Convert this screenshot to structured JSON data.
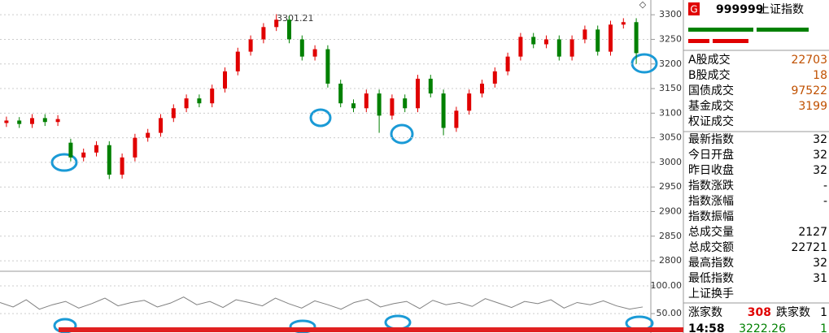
{
  "chart_data": [
    {
      "type": "candlestick",
      "annotation": "3301.21",
      "up_color": "#e00000",
      "down_color": "#008000",
      "open": [
        3080,
        3085,
        3078,
        3090,
        3082,
        3040,
        3010,
        3020,
        3035,
        2975,
        3010,
        3050,
        3060,
        3090,
        3110,
        3130,
        3120,
        3150,
        3185,
        3225,
        3250,
        3275,
        3290,
        3250,
        3215,
        3230,
        3160,
        3120,
        3110,
        3140,
        3095,
        3130,
        3110,
        3170,
        3140,
        3070,
        3105,
        3140,
        3160,
        3185,
        3215,
        3255,
        3240,
        3250,
        3215,
        3250,
        3270,
        3225,
        3280,
        3285
      ],
      "high": [
        3093,
        3092,
        3098,
        3098,
        3096,
        3048,
        3028,
        3043,
        3043,
        3018,
        3058,
        3068,
        3098,
        3118,
        3138,
        3138,
        3158,
        3193,
        3233,
        3258,
        3283,
        3301.21,
        3298,
        3258,
        3238,
        3238,
        3168,
        3128,
        3148,
        3148,
        3138,
        3138,
        3178,
        3178,
        3148,
        3113,
        3148,
        3168,
        3193,
        3223,
        3263,
        3263,
        3258,
        3258,
        3258,
        3278,
        3278,
        3288,
        3293,
        3293
      ],
      "low": [
        3072,
        3070,
        3070,
        3074,
        3074,
        3002,
        3002,
        3012,
        2966,
        2967,
        3002,
        3042,
        3052,
        3082,
        3102,
        3112,
        3112,
        3142,
        3177,
        3217,
        3242,
        3267,
        3242,
        3207,
        3207,
        3152,
        3112,
        3102,
        3102,
        3060,
        3087,
        3102,
        3102,
        3132,
        3055,
        3062,
        3097,
        3132,
        3152,
        3177,
        3207,
        3232,
        3232,
        3207,
        3207,
        3242,
        3217,
        3217,
        3272,
        3200
      ],
      "close": [
        3085,
        3078,
        3090,
        3082,
        3088,
        3010,
        3020,
        3035,
        2975,
        3010,
        3050,
        3060,
        3090,
        3110,
        3130,
        3120,
        3150,
        3185,
        3225,
        3250,
        3275,
        3290,
        3250,
        3215,
        3230,
        3160,
        3120,
        3110,
        3140,
        3095,
        3130,
        3110,
        3170,
        3140,
        3070,
        3105,
        3140,
        3160,
        3185,
        3215,
        3255,
        3240,
        3250,
        3215,
        3250,
        3270,
        3225,
        3280,
        3285,
        3222
      ],
      "ylim": [
        2777,
        3330
      ],
      "yticks": [
        2800,
        2850,
        2900,
        2950,
        3000,
        3050,
        3100,
        3150,
        3200,
        3250,
        3300
      ],
      "grid": true
    },
    {
      "type": "line",
      "series": [
        {
          "color": "#808080",
          "values": [
            70,
            62,
            75,
            58,
            66,
            72,
            60,
            68,
            78,
            64,
            70,
            74,
            62,
            69,
            80,
            66,
            72,
            61,
            75,
            70,
            64,
            78,
            68,
            60,
            73,
            66,
            58,
            70,
            76,
            62,
            68,
            72,
            59,
            74,
            66,
            70,
            63,
            77,
            69,
            61,
            72,
            68,
            75,
            60,
            70,
            66,
            73,
            64,
            58,
            62
          ]
        }
      ],
      "ylim": [
        15,
        122
      ],
      "yticks": [
        {
          "value": 100,
          "label": "100.00"
        },
        {
          "value": 50,
          "label": "50.00"
        }
      ],
      "grid": true
    }
  ],
  "panel": {
    "badge": "G",
    "code": "999999",
    "name": "上证指数",
    "rows": [
      {
        "label": "A股成交",
        "value": "22703"
      },
      {
        "label": "B股成交",
        "value": "18"
      },
      {
        "label": "国债成交",
        "value": "97522"
      },
      {
        "label": "基金成交",
        "value": "3199"
      },
      {
        "label": "权证成交"
      },
      {
        "label": "最新指数",
        "value": "32"
      },
      {
        "label": "今日开盘",
        "value": "32"
      },
      {
        "label": "昨日收盘",
        "value": "32"
      },
      {
        "label": "指数涨跌",
        "value": "-"
      },
      {
        "label": "指数涨幅",
        "value": "-"
      },
      {
        "label": "指数振幅"
      },
      {
        "label": "总成交量",
        "value": "2127"
      },
      {
        "label": "总成交额",
        "value": "22721"
      },
      {
        "label": "最高指数",
        "value": "32"
      },
      {
        "label": "最低指数",
        "value": "31"
      },
      {
        "label": "上证换手"
      }
    ],
    "up_label": "涨家数",
    "up_count": "308",
    "down_label": "跌家数",
    "down_count": "1",
    "time": "14:58",
    "price": "3222.26",
    "change": "1"
  }
}
